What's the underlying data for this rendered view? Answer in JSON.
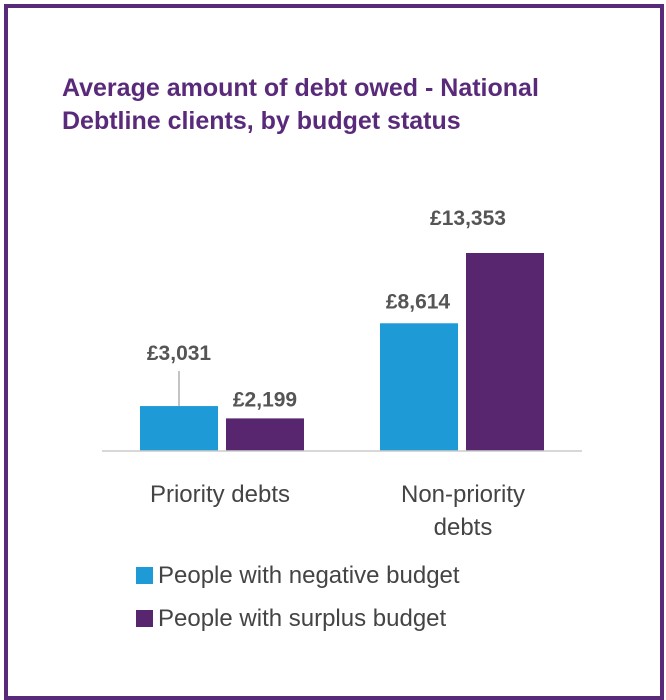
{
  "chart_data": {
    "type": "bar",
    "title": "Average amount of debt owed - National Debtline clients, by budget status",
    "categories": [
      "Priority debts",
      "Non-priority debts"
    ],
    "category_lines": [
      [
        "Priority debts"
      ],
      [
        "Non-priority",
        "debts"
      ]
    ],
    "series": [
      {
        "name": "People with negative budget",
        "values": [
          3031,
          8614
        ],
        "labels": [
          "£3,031",
          "£8,614"
        ],
        "color": "#1e9ad6"
      },
      {
        "name": "People with surplus budget",
        "values": [
          2199,
          13353
        ],
        "labels": [
          "£2,199",
          "£13,353"
        ],
        "color": "#58266f"
      }
    ],
    "ylim": [
      0,
      13353
    ],
    "grid": false,
    "legend_position": "bottom"
  }
}
